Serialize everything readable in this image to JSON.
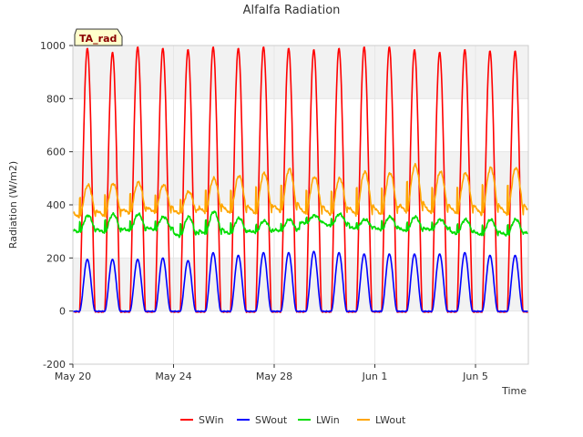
{
  "chart_data": {
    "type": "line",
    "title": "Alfalfa Radiation",
    "xlabel": "Time",
    "ylabel": "Radiation (W/m2)",
    "badge": "TA_rad",
    "ylim": [
      -200,
      1000
    ],
    "yticks": [
      -200,
      0,
      200,
      400,
      600,
      800,
      1000
    ],
    "x_start": "May 20",
    "xlim_days": [
      0,
      18.1
    ],
    "xticks": [
      {
        "label": "May 20",
        "day": 0
      },
      {
        "label": "May 24",
        "day": 4
      },
      {
        "label": "May 28",
        "day": 8
      },
      {
        "label": "Jun 1",
        "day": 12
      },
      {
        "label": "Jun 5",
        "day": 16
      }
    ],
    "grid": true,
    "legend_position": "bottom",
    "series": [
      {
        "name": "SWin",
        "color": "#ff0000",
        "daily_peaks": [
          990,
          975,
          995,
          990,
          985,
          995,
          990,
          995,
          990,
          985,
          990,
          995,
          995,
          985,
          975,
          985,
          980
        ]
      },
      {
        "name": "SWout",
        "color": "#0000ff",
        "daily_peaks": [
          195,
          195,
          195,
          200,
          190,
          220,
          210,
          220,
          220,
          225,
          220,
          215,
          215,
          215,
          215,
          220,
          210
        ]
      },
      {
        "name": "LWin",
        "color": "#00dd00",
        "daily_min": [
          295,
          295,
          300,
          305,
          280,
          290,
          290,
          295,
          300,
          330,
          320,
          310,
          305,
          300,
          305,
          290,
          285
        ],
        "daily_max": [
          360,
          365,
          365,
          355,
          355,
          375,
          350,
          340,
          345,
          360,
          365,
          345,
          355,
          355,
          345,
          345,
          345
        ]
      },
      {
        "name": "LWout",
        "color": "#ffa500",
        "daily_min": [
          350,
          355,
          365,
          370,
          365,
          370,
          365,
          365,
          370,
          365,
          360,
          360,
          360,
          370,
          365,
          365,
          360
        ],
        "daily_max": [
          475,
          480,
          485,
          475,
          450,
          500,
          510,
          520,
          535,
          505,
          500,
          525,
          520,
          550,
          525,
          520,
          540
        ]
      }
    ]
  }
}
